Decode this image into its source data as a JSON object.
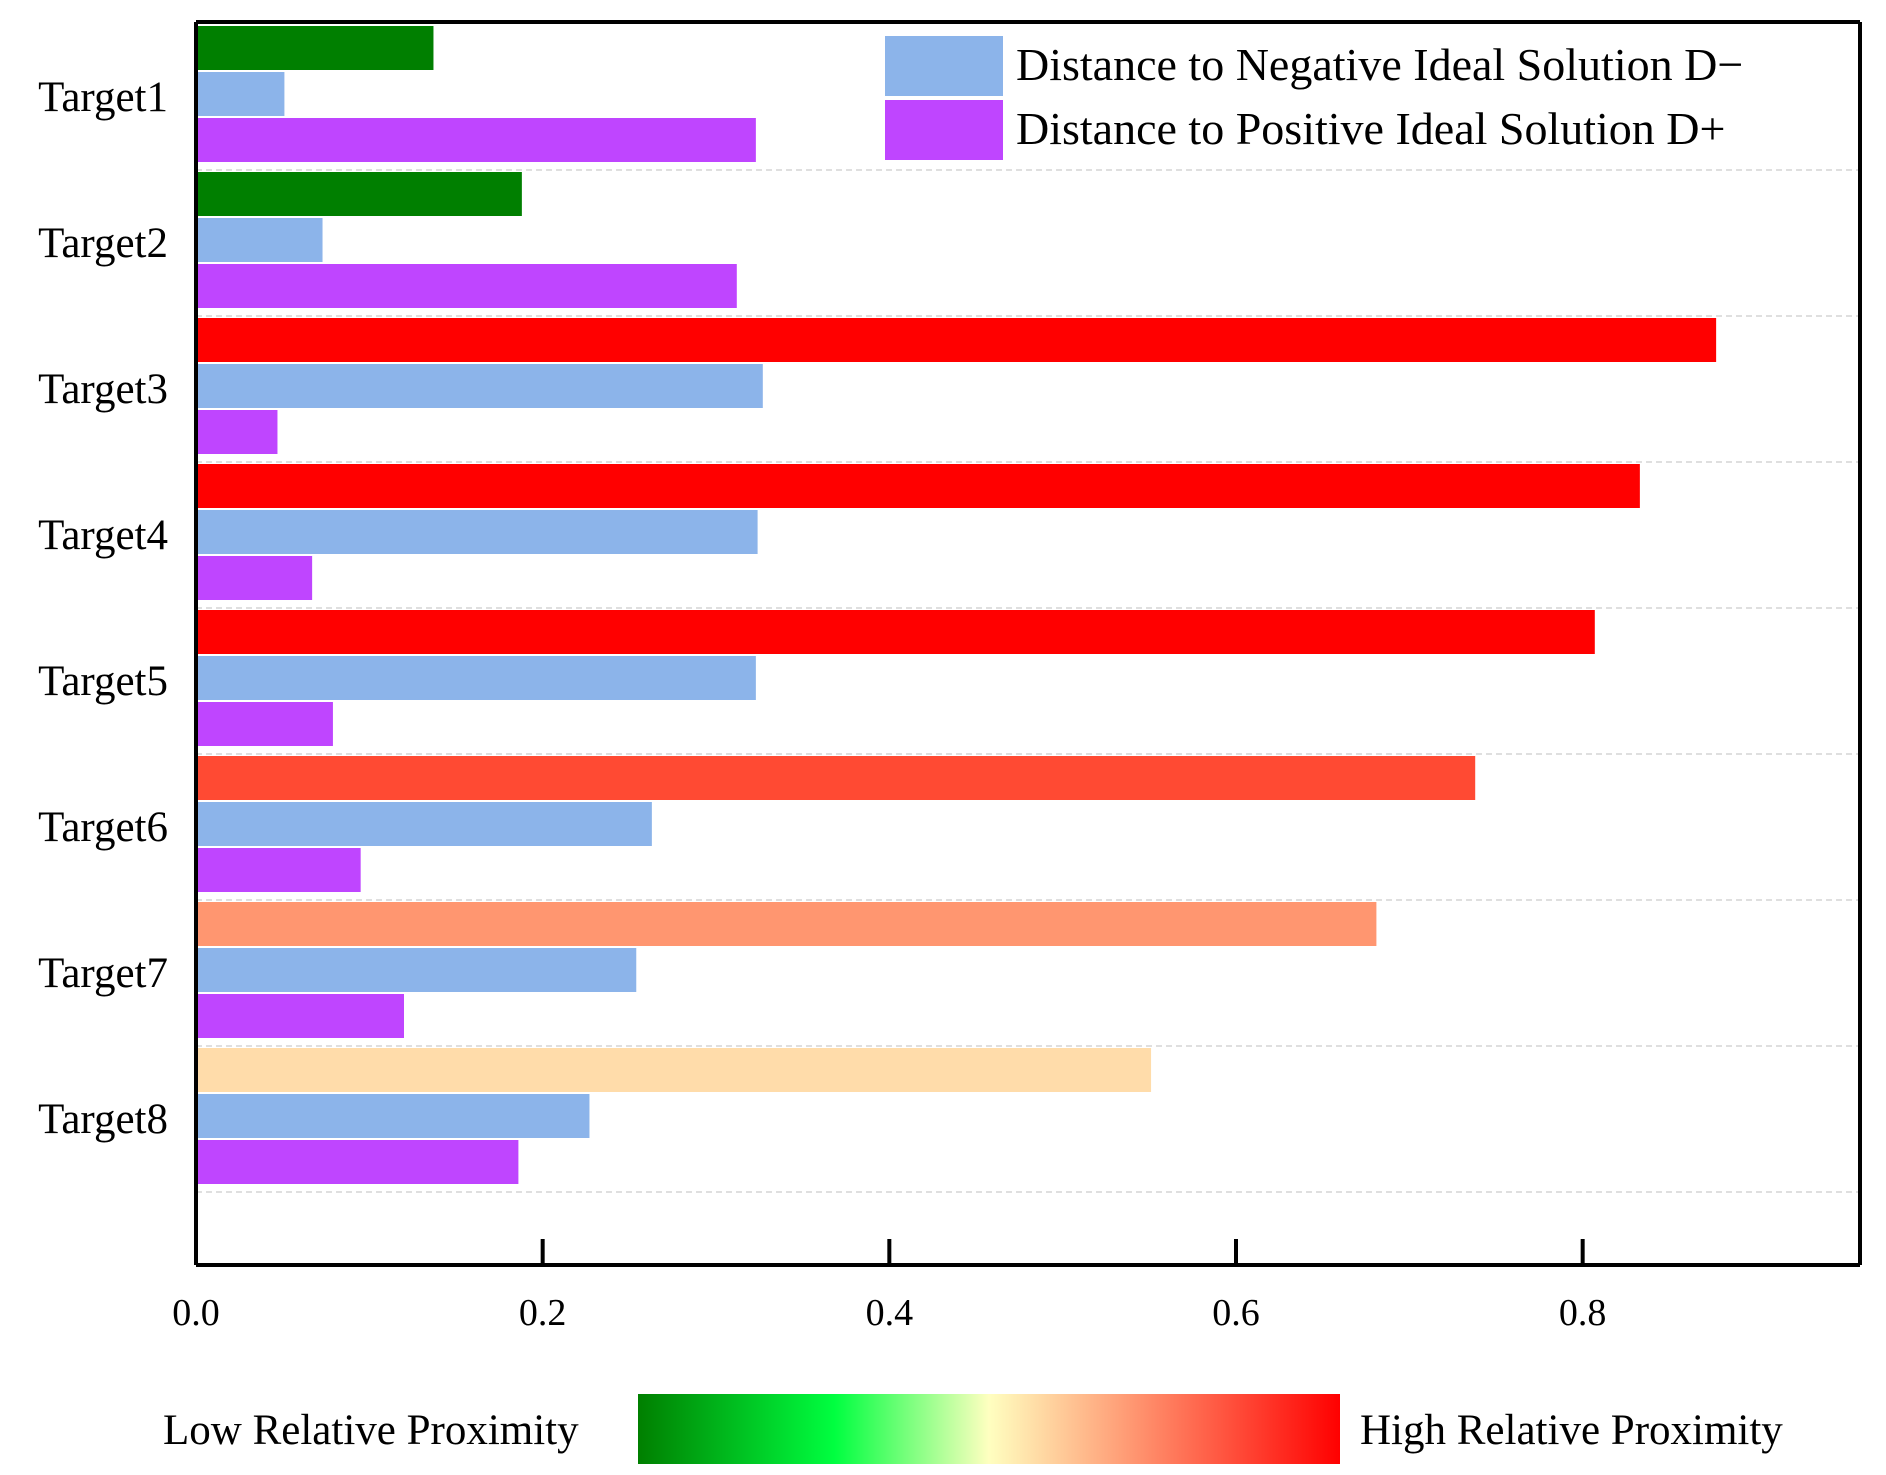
{
  "chart_data": {
    "type": "bar",
    "orientation": "horizontal",
    "categories": [
      "Target1",
      "Target2",
      "Target3",
      "Target4",
      "Target5",
      "Target6",
      "Target7",
      "Target8"
    ],
    "series": [
      {
        "name": "Relative Proximity",
        "values": [
          0.137,
          0.188,
          0.877,
          0.833,
          0.807,
          0.738,
          0.681,
          0.551
        ],
        "colors": [
          "#007f00",
          "#007f00",
          "#ff0000",
          "#ff0000",
          "#ff0000",
          "#ff4a33",
          "#ff9670",
          "#ffdcaa"
        ]
      },
      {
        "name": "Distance to Negative Ideal Solution D−",
        "values": [
          0.051,
          0.073,
          0.327,
          0.324,
          0.323,
          0.263,
          0.254,
          0.227
        ],
        "color": "#8cb4ea"
      },
      {
        "name": "Distance to Positive Ideal Solution D+",
        "values": [
          0.323,
          0.312,
          0.047,
          0.067,
          0.079,
          0.095,
          0.12,
          0.186
        ],
        "color": "#bf45ff"
      }
    ],
    "xlim": [
      0,
      0.96
    ],
    "xticks": [
      "0.0",
      "0.2",
      "0.4",
      "0.6",
      "0.8"
    ],
    "xtick_values": [
      0,
      0.2,
      0.4,
      0.6,
      0.8
    ],
    "legend_position": "top-right",
    "grid": "horizontal dashed between categories",
    "colorbar": {
      "low_label": "Low Relative Proximity",
      "high_label": "High Relative Proximity",
      "colors": [
        "#007f00",
        "#00ff40",
        "#ffffc0",
        "#ff0000"
      ]
    }
  }
}
